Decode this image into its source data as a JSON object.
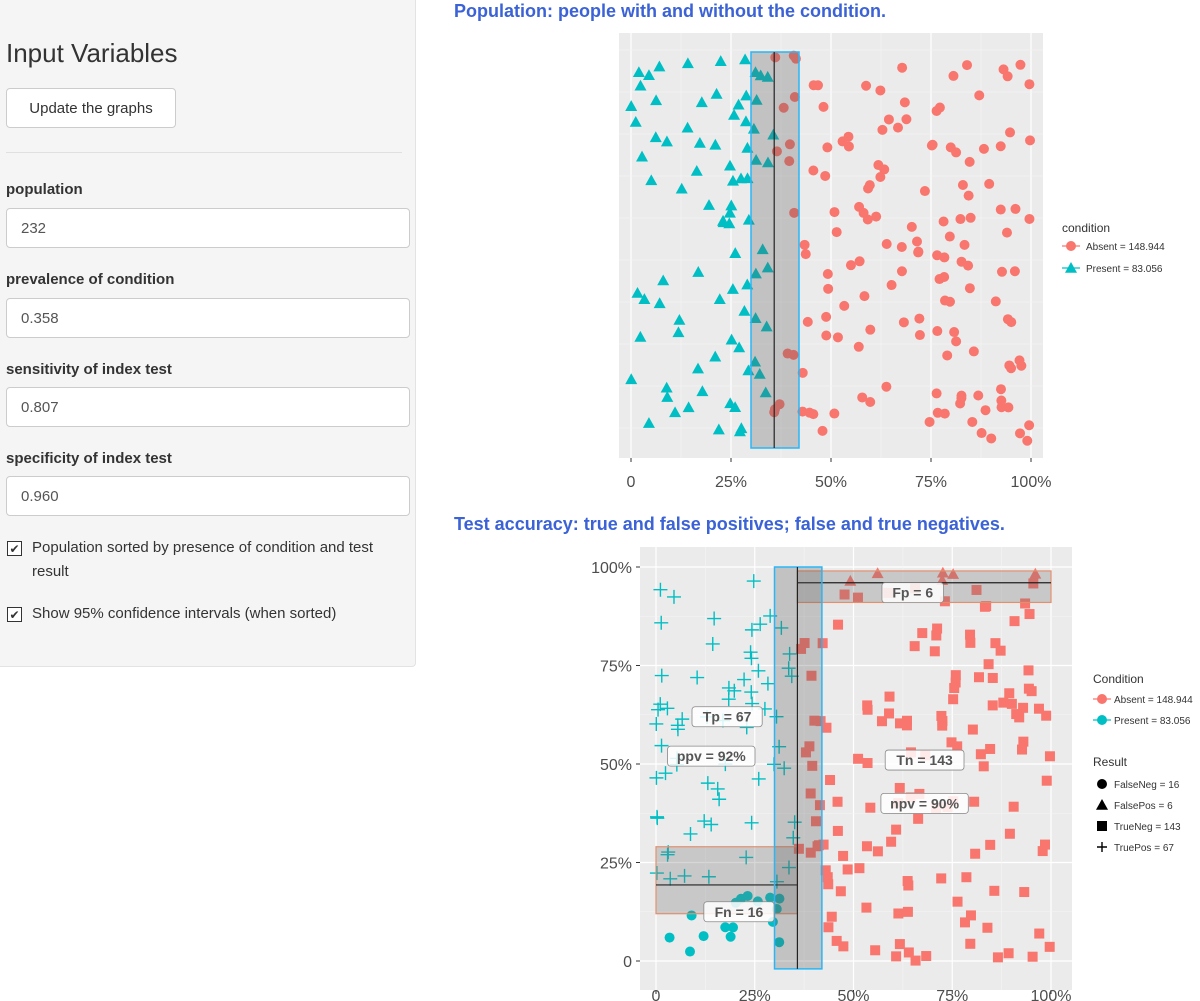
{
  "sidebar": {
    "heading": "Input Variables",
    "update_button": "Update the graphs",
    "fields": [
      {
        "label": "population",
        "value": "232"
      },
      {
        "label": "prevalence of condition",
        "value": "0.358"
      },
      {
        "label": "sensitivity of index test",
        "value": "0.807"
      },
      {
        "label": "specificity of index test",
        "value": "0.960"
      }
    ],
    "checkboxes": [
      {
        "label": "Population sorted by presence of condition and test result",
        "checked": true
      },
      {
        "label": "Show 95% confidence intervals (when sorted)",
        "checked": true
      }
    ]
  },
  "plot1": {
    "title": "Population: people with and without the condition.",
    "x_ticks": [
      "0",
      "25%",
      "50%",
      "75%",
      "100%"
    ],
    "legend_title": "condition",
    "legend": [
      {
        "label": "Absent = 148.944",
        "color": "#f8766d",
        "shape": "circle"
      },
      {
        "label": "Present = 83.056",
        "color": "#00bfc4",
        "shape": "triangle"
      }
    ]
  },
  "plot2": {
    "title": "Test accuracy: true and false positives; false and true negatives.",
    "x_ticks": [
      "0",
      "25%",
      "50%",
      "75%",
      "100%"
    ],
    "y_ticks": [
      "0",
      "25%",
      "50%",
      "75%",
      "100%"
    ],
    "annotations": [
      {
        "label": "Fp = 6"
      },
      {
        "label": "Tp = 67"
      },
      {
        "label": "ppv = 92%"
      },
      {
        "label": "Tn = 143"
      },
      {
        "label": "npv = 90%"
      },
      {
        "label": "Fn = 16"
      }
    ],
    "legend_condition_title": "Condition",
    "legend_condition": [
      {
        "label": "Absent = 148.944",
        "color": "#f8766d"
      },
      {
        "label": "Present = 83.056",
        "color": "#00bfc4"
      }
    ],
    "legend_result_title": "Result",
    "legend_result": [
      {
        "label": "FalseNeg = 16",
        "shape": "circle"
      },
      {
        "label": "FalsePos = 6",
        "shape": "triangle"
      },
      {
        "label": "TrueNeg = 143",
        "shape": "square"
      },
      {
        "label": "TruePos = 67",
        "shape": "plus"
      }
    ]
  },
  "chart_data": [
    {
      "type": "scatter",
      "title": "Population: people with and without the condition.",
      "xlim": [
        0,
        1
      ],
      "x_tick_labels": [
        "0",
        "25%",
        "50%",
        "75%",
        "100%"
      ],
      "vertical_line": 0.358,
      "interval": [
        0.3,
        0.42
      ],
      "series": [
        {
          "name": "Absent = 148.944",
          "count": 149,
          "x_range": [
            0.358,
            1.0
          ]
        },
        {
          "name": "Present = 83.056",
          "count": 83,
          "x_range": [
            0.0,
            0.358
          ]
        }
      ]
    },
    {
      "type": "scatter",
      "title": "Test accuracy: true and false positives; false and true negatives.",
      "xlim": [
        0,
        1
      ],
      "ylim": [
        0,
        1
      ],
      "x_tick_labels": [
        "0",
        "25%",
        "50%",
        "75%",
        "100%"
      ],
      "y_tick_labels": [
        "0",
        "25%",
        "50%",
        "75%",
        "100%"
      ],
      "vertical_line": 0.358,
      "interval": [
        0.3,
        0.42
      ],
      "horizontal_lines": [
        {
          "y": 0.96,
          "x_range": [
            0.358,
            1.0
          ],
          "band": [
            0.91,
            0.99
          ]
        },
        {
          "y": 0.193,
          "x_range": [
            0.0,
            0.358
          ],
          "band": [
            0.12,
            0.29
          ]
        }
      ],
      "series": [
        {
          "name": "FalseNeg = 16",
          "condition": "Present",
          "shape": "circle",
          "count": 16
        },
        {
          "name": "FalsePos = 6",
          "condition": "Absent",
          "shape": "triangle",
          "count": 6
        },
        {
          "name": "TrueNeg = 143",
          "condition": "Absent",
          "shape": "square",
          "count": 143
        },
        {
          "name": "TruePos = 67",
          "condition": "Present",
          "shape": "plus",
          "count": 67
        }
      ]
    }
  ]
}
